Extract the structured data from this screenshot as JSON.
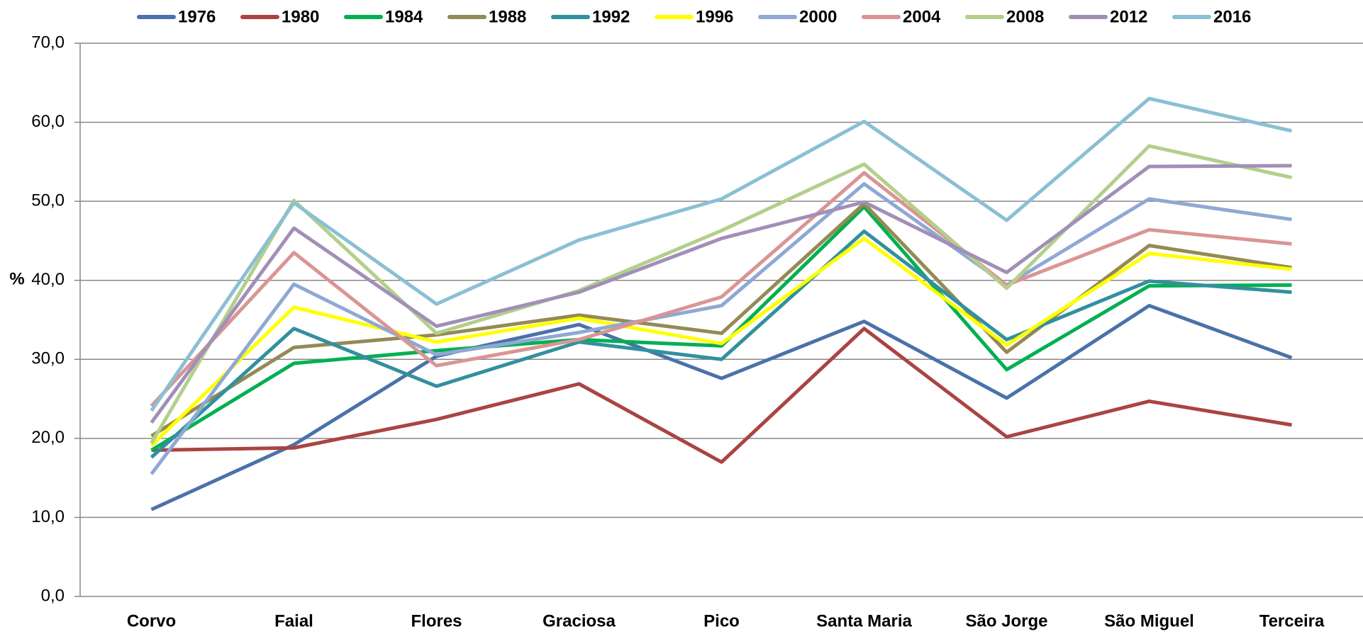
{
  "chart_data": {
    "type": "line",
    "y_label": "%",
    "categories": [
      "Corvo",
      "Faial",
      "Flores",
      "Graciosa",
      "Pico",
      "Santa Maria",
      "São Jorge",
      "São Miguel",
      "Terceira"
    ],
    "series": [
      {
        "name": "1976",
        "color": "#4a72aa",
        "values": [
          11.0,
          19.2,
          30.4,
          34.4,
          27.6,
          34.8,
          25.1,
          36.8,
          30.2
        ]
      },
      {
        "name": "1980",
        "color": "#aa4442",
        "values": [
          18.5,
          18.8,
          22.4,
          26.9,
          17.0,
          33.9,
          20.2,
          24.7,
          21.7
        ]
      },
      {
        "name": "1984",
        "color": "#00b050",
        "values": [
          18.5,
          29.5,
          31.1,
          32.5,
          31.7,
          49.3,
          28.7,
          39.3,
          39.4
        ]
      },
      {
        "name": "1988",
        "color": "#948a54",
        "values": [
          20.3,
          31.5,
          33.1,
          35.6,
          33.3,
          49.7,
          30.9,
          44.4,
          41.6
        ]
      },
      {
        "name": "1992",
        "color": "#31909f",
        "values": [
          17.6,
          33.9,
          26.6,
          32.2,
          30.0,
          46.2,
          32.5,
          39.9,
          38.5
        ]
      },
      {
        "name": "1996",
        "color": "#ffff00",
        "values": [
          19.1,
          36.6,
          32.2,
          35.2,
          32.0,
          45.3,
          31.8,
          43.4,
          41.4
        ]
      },
      {
        "name": "2000",
        "color": "#8fa8d4",
        "values": [
          15.5,
          39.5,
          30.6,
          33.4,
          36.8,
          52.2,
          39.4,
          50.3,
          47.7
        ]
      },
      {
        "name": "2004",
        "color": "#d99594",
        "values": [
          24.1,
          43.5,
          29.2,
          32.5,
          37.9,
          53.6,
          39.4,
          46.4,
          44.6
        ]
      },
      {
        "name": "2008",
        "color": "#b3cf8b",
        "values": [
          19.4,
          50.1,
          33.3,
          38.7,
          46.3,
          54.7,
          39.0,
          57.0,
          53.0
        ]
      },
      {
        "name": "2012",
        "color": "#a18fb8",
        "values": [
          22.0,
          46.6,
          34.2,
          38.5,
          45.3,
          49.9,
          41.0,
          54.4,
          54.5
        ]
      },
      {
        "name": "2016",
        "color": "#8bbfd4",
        "values": [
          23.5,
          49.8,
          37.0,
          45.1,
          50.3,
          60.1,
          47.6,
          63.0,
          58.9
        ]
      }
    ],
    "ylim": [
      0,
      70
    ],
    "yticks": [
      {
        "value": 0,
        "label": "0,0"
      },
      {
        "value": 10,
        "label": "10,0"
      },
      {
        "value": 20,
        "label": "20,0"
      },
      {
        "value": 30,
        "label": "30,0"
      },
      {
        "value": 40,
        "label": "40,0"
      },
      {
        "value": 50,
        "label": "50,0"
      },
      {
        "value": 60,
        "label": "60,0"
      },
      {
        "value": 70,
        "label": "70,0"
      }
    ],
    "grid": true,
    "legend": "top"
  }
}
